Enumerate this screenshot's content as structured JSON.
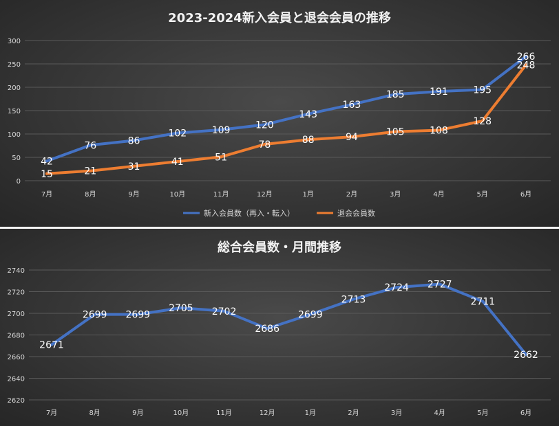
{
  "chart_data": [
    {
      "type": "line",
      "title": "2023-2024新入会員と退会会員の推移",
      "categories": [
        "7月",
        "8月",
        "9月",
        "10月",
        "11月",
        "12月",
        "1月",
        "2月",
        "3月",
        "4月",
        "5月",
        "6月"
      ],
      "ylim": [
        0,
        300
      ],
      "yticks": [
        "0",
        "50",
        "100",
        "150",
        "200",
        "250",
        "300"
      ],
      "grid": true,
      "legend_position": "bottom",
      "series": [
        {
          "name": "新入会員数（再入・転入）",
          "color": "#4472c4",
          "values": [
            42,
            76,
            86,
            102,
            109,
            120,
            143,
            163,
            185,
            191,
            195,
            266
          ]
        },
        {
          "name": "退会会員数",
          "color": "#ed7d31",
          "values": [
            15,
            21,
            31,
            41,
            51,
            78,
            88,
            94,
            105,
            108,
            128,
            248
          ]
        }
      ]
    },
    {
      "type": "line",
      "title": "総合会員数・月間推移",
      "categories": [
        "7月",
        "8月",
        "9月",
        "10月",
        "11月",
        "12月",
        "1月",
        "2月",
        "3月",
        "4月",
        "5月",
        "6月"
      ],
      "ylim": [
        2620,
        2740
      ],
      "yticks": [
        "2620",
        "2640",
        "2660",
        "2680",
        "2700",
        "2720",
        "2740"
      ],
      "grid": true,
      "series": [
        {
          "name": "総合会員数",
          "color": "#4472c4",
          "values": [
            2671,
            2699,
            2699,
            2705,
            2702,
            2686,
            2699,
            2713,
            2724,
            2727,
            2711,
            2662
          ]
        }
      ]
    }
  ]
}
